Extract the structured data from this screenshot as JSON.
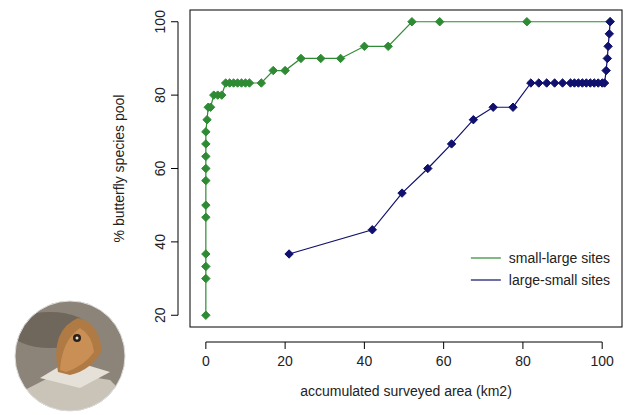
{
  "chart_data": {
    "type": "line",
    "x_label": "accumulated surveyed area (km2)",
    "y_label": "% butterfly species pool",
    "xlim": [
      -4,
      105
    ],
    "ylim": [
      16.8,
      103.2
    ],
    "xticks": [
      0,
      20,
      40,
      60,
      80,
      100
    ],
    "yticks": [
      20,
      40,
      60,
      80,
      100
    ],
    "grid": false,
    "legend": "bottom-right",
    "marker": "diamond",
    "series": [
      {
        "name": "small-large sites",
        "color": "#2e8b34",
        "x": [
          0,
          0,
          0,
          0,
          0,
          0,
          0,
          0,
          0,
          0,
          0,
          0.3,
          0.6,
          1.2,
          2,
          3,
          4,
          5,
          6,
          7,
          8,
          9,
          10,
          11,
          14,
          17,
          20,
          24,
          29,
          34,
          40,
          46,
          52,
          59,
          81,
          102
        ],
        "values": [
          20,
          30,
          33.3,
          36.7,
          46.7,
          50,
          56.7,
          60,
          63.3,
          66.7,
          70,
          73.3,
          76.7,
          76.7,
          80,
          80,
          80,
          83.3,
          83.3,
          83.3,
          83.3,
          83.3,
          83.3,
          83.3,
          83.3,
          86.7,
          86.7,
          90,
          90,
          90,
          93.3,
          93.3,
          100,
          100,
          100,
          100
        ]
      },
      {
        "name": "large-small sites",
        "color": "#10106e",
        "x": [
          21,
          42,
          49.5,
          56,
          62,
          67.5,
          72.5,
          77.5,
          82,
          84,
          86,
          88,
          90,
          92,
          93,
          94,
          95,
          96,
          97,
          98,
          99,
          100,
          100.6,
          101,
          101.3,
          101.5,
          101.8,
          102
        ],
        "values": [
          36.7,
          43.3,
          53.3,
          60,
          66.7,
          73.3,
          76.7,
          76.7,
          83.3,
          83.3,
          83.3,
          83.3,
          83.3,
          83.3,
          83.3,
          83.3,
          83.3,
          83.3,
          83.3,
          83.3,
          83.3,
          83.3,
          83.3,
          86.7,
          90,
          93.3,
          96.7,
          100
        ]
      }
    ]
  }
}
